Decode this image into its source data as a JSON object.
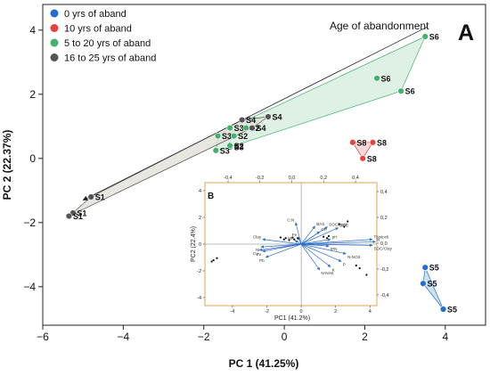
{
  "figure": {
    "panel_letter": "A",
    "inset_letter": "B"
  },
  "chart_data": [
    {
      "type": "scatter",
      "title": "",
      "xlabel": "PC 1 (41.25%)",
      "ylabel": "PC 2 (22.37%)",
      "xlim": [
        -6,
        5
      ],
      "ylim": [
        -5.2,
        4.8
      ],
      "x_ticks": [
        -6,
        -4,
        -2,
        0,
        2,
        4
      ],
      "y_ticks": [
        -4,
        -2,
        0,
        2,
        4
      ],
      "grid": false,
      "legend_position": "top-left",
      "annotation": "Age of abandonment",
      "series": [
        {
          "name": "0 yrs of aband",
          "color": "#1f6fd6",
          "hull_fill": "#b9d7e6",
          "points": [
            {
              "x": 3.5,
              "y": -3.4,
              "label": "S5"
            },
            {
              "x": 3.45,
              "y": -3.9,
              "label": "S5"
            },
            {
              "x": 3.95,
              "y": -4.7,
              "label": "S5"
            }
          ]
        },
        {
          "name": "10 yrs of aband",
          "color": "#e8403a",
          "hull_fill": "#f2cccc",
          "points": [
            {
              "x": 1.7,
              "y": 0.5,
              "label": "S8"
            },
            {
              "x": 2.2,
              "y": 0.5,
              "label": "S8"
            },
            {
              "x": 1.95,
              "y": 0.0,
              "label": "S8"
            }
          ]
        },
        {
          "name": "5 to 20 yrs of aband",
          "color": "#3fb36b",
          "hull_fill": "#d4ecdc",
          "points": [
            {
              "x": 3.5,
              "y": 3.8,
              "label": "S6"
            },
            {
              "x": 2.3,
              "y": 2.5,
              "label": "S6"
            },
            {
              "x": 2.9,
              "y": 2.1,
              "label": "S6"
            },
            {
              "x": -1.35,
              "y": 0.95,
              "label": "S3"
            },
            {
              "x": -1.65,
              "y": 0.7,
              "label": "S3"
            },
            {
              "x": -1.35,
              "y": 0.35,
              "label": "S3"
            },
            {
              "x": -1.7,
              "y": 0.25,
              "label": "S3"
            },
            {
              "x": -1.25,
              "y": 0.7,
              "label": "S2"
            },
            {
              "x": -0.95,
              "y": 0.95,
              "label": "S2"
            },
            {
              "x": -1.35,
              "y": 0.4,
              "label": "S2"
            }
          ]
        },
        {
          "name": "16 to 25 yrs of aband",
          "color": "#555555",
          "hull_fill": "#e0ded6",
          "points": [
            {
              "x": -4.8,
              "y": -1.2,
              "label": "S1"
            },
            {
              "x": -5.25,
              "y": -1.7,
              "label": "S1"
            },
            {
              "x": -5.35,
              "y": -1.8,
              "label": "S1"
            },
            {
              "x": -1.05,
              "y": 1.2,
              "label": "S4"
            },
            {
              "x": -0.4,
              "y": 1.3,
              "label": "S4"
            },
            {
              "x": -0.8,
              "y": 0.95,
              "label": "S4"
            }
          ]
        }
      ]
    },
    {
      "type": "scatter",
      "title": "",
      "xlabel": "PC1 (41.2%)",
      "ylabel": "PC2 (22.4%)",
      "xlim": [
        -5.6,
        4.4
      ],
      "ylim": [
        -4.6,
        4.6
      ],
      "x_ticks": [
        -4,
        -2,
        0,
        2,
        4
      ],
      "y_ticks": [
        -4,
        -2,
        0,
        2,
        4
      ],
      "top_ticks": [
        "-0,4",
        "-0,2",
        "0,0",
        "0,2",
        "0,4"
      ],
      "right_ticks": [
        "0,4",
        "0,2",
        "0,0",
        "-0,2",
        "-0,4"
      ],
      "loadings": [
        {
          "name": "C:N",
          "dx": -0.18,
          "dy": 0.9
        },
        {
          "name": "BAS",
          "dx": 0.45,
          "dy": 0.75
        },
        {
          "name": "SOCstock",
          "dx": 0.85,
          "dy": 0.72
        },
        {
          "name": "SOC",
          "dx": 1.2,
          "dy": 0.68
        },
        {
          "name": "CP",
          "dx": 0.6,
          "dy": 0.52
        },
        {
          "name": "Clay",
          "dx": -1.25,
          "dy": 0.2
        },
        {
          "name": "pH",
          "dx": 0.95,
          "dy": 0.2
        },
        {
          "name": "TNstock",
          "dx": 2.3,
          "dy": 0.2
        },
        {
          "name": "N",
          "dx": 2.4,
          "dy": 0.1
        },
        {
          "name": "SOC/Clay",
          "dx": 2.3,
          "dy": -0.05
        },
        {
          "name": "IPN",
          "dx": 0.9,
          "dy": -0.08
        },
        {
          "name": "Ni",
          "dx": -1.3,
          "dy": -0.12
        },
        {
          "name": "Cu",
          "dx": -1.35,
          "dy": -0.25
        },
        {
          "name": "Zn",
          "dx": -1.25,
          "dy": -0.3
        },
        {
          "name": "Pb",
          "dx": -1.15,
          "dy": -0.55
        },
        {
          "name": "N-NO3",
          "dx": 1.45,
          "dy": -0.4
        },
        {
          "name": "P",
          "dx": 1.3,
          "dy": -0.72
        },
        {
          "name": "K",
          "dx": 0.95,
          "dy": -0.95
        },
        {
          "name": "N-NH4",
          "dx": 0.6,
          "dy": -1.08
        },
        {
          "name": "Fe",
          "dx": -0.1,
          "dy": 0.3
        },
        {
          "name": "Mn",
          "dx": -0.2,
          "dy": 0.15
        }
      ],
      "scores": [
        {
          "x": -5.1,
          "y": -1.2
        },
        {
          "x": -5.2,
          "y": -1.3
        },
        {
          "x": -4.9,
          "y": -1.05
        },
        {
          "x": -1.2,
          "y": 0.5
        },
        {
          "x": -1.0,
          "y": 0.35
        },
        {
          "x": -0.9,
          "y": 0.45
        },
        {
          "x": -0.7,
          "y": 0.3
        },
        {
          "x": -0.5,
          "y": 0.5
        },
        {
          "x": -0.4,
          "y": 0.35
        },
        {
          "x": -0.2,
          "y": 0.45
        },
        {
          "x": 1.3,
          "y": 0.55
        },
        {
          "x": 1.5,
          "y": 0.45
        },
        {
          "x": 1.6,
          "y": 0.6
        },
        {
          "x": 2.7,
          "y": 1.7
        },
        {
          "x": 2.2,
          "y": 1.5
        },
        {
          "x": 2.5,
          "y": 1.3
        },
        {
          "x": 3.2,
          "y": -1.6
        },
        {
          "x": 3.4,
          "y": -1.8
        },
        {
          "x": 3.8,
          "y": -2.3
        }
      ]
    }
  ]
}
